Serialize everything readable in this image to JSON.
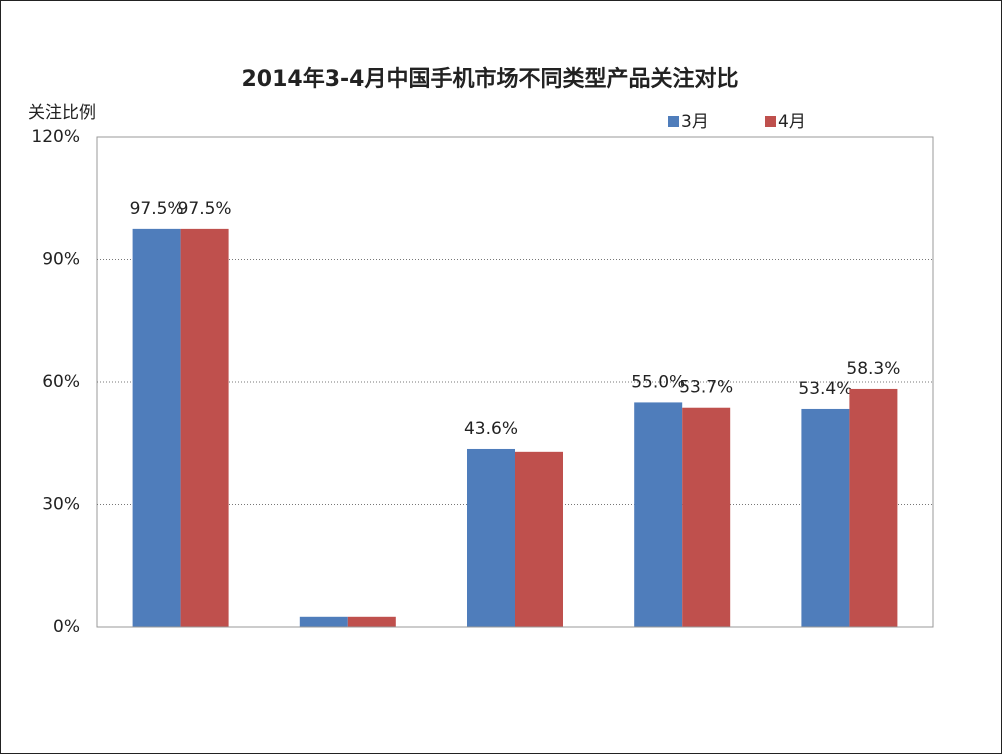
{
  "chart_data": {
    "type": "bar",
    "title": "2014年3-4月中国手机市场不同类型产品关注对比",
    "y_label": "关注比例",
    "categories": [
      null,
      null,
      null,
      null,
      null
    ],
    "series": [
      {
        "name": "3月",
        "color": "#4f7dbb",
        "values": [
          97.5,
          2.5,
          43.6,
          55.0,
          53.4
        ],
        "value_labels": [
          "97.5%",
          null,
          "43.6%",
          "55.0%",
          "53.4%"
        ]
      },
      {
        "name": "4月",
        "color": "#bf504d",
        "values": [
          97.5,
          2.5,
          42.9,
          53.7,
          58.3
        ],
        "value_labels": [
          "97.5%",
          null,
          null,
          "53.7%",
          "58.3%"
        ]
      }
    ],
    "ylim": [
      0,
      120
    ],
    "yticks": [
      {
        "value": 0,
        "label": "0%"
      },
      {
        "value": 30,
        "label": "30%"
      },
      {
        "value": 60,
        "label": "60%"
      },
      {
        "value": 90,
        "label": "90%"
      },
      {
        "value": 120,
        "label": "120%"
      }
    ],
    "grid": true,
    "legend": "top-right"
  }
}
